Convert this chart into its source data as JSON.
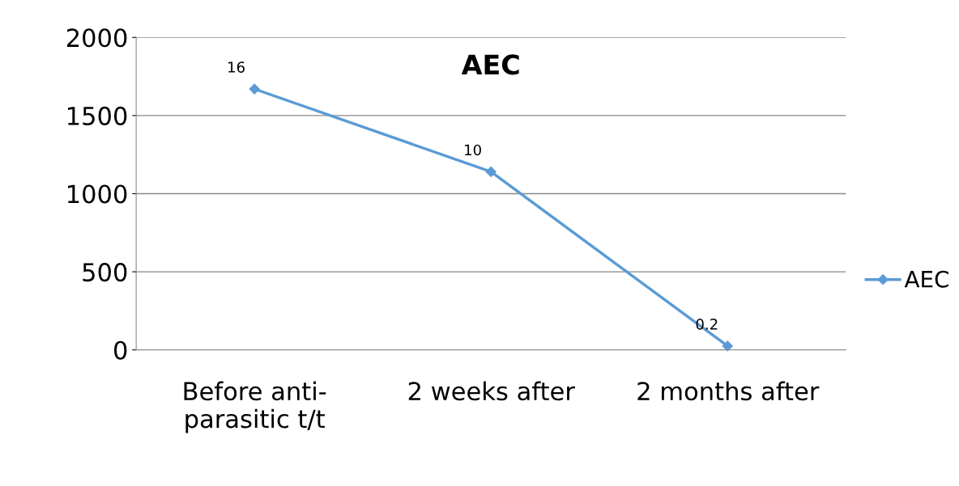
{
  "chart_data": {
    "type": "line",
    "title": "AEC",
    "categories": [
      "Before anti-\nparasitic t/t",
      "2 weeks after",
      "2 months after"
    ],
    "series": [
      {
        "name": "AEC",
        "color": "#5b9bd5",
        "values": [
          1670,
          1140,
          25
        ]
      }
    ],
    "annotations": [
      {
        "text": "16",
        "x": "Before anti-\nparasitic t/t",
        "y": 1670
      },
      {
        "text": "10",
        "x": "2 weeks after",
        "y": 1140
      },
      {
        "text": "0.2",
        "x": "2 months after",
        "y": 25
      }
    ],
    "ylim": [
      0,
      2000
    ],
    "yticks": [
      0,
      500,
      1000,
      1500,
      2000
    ],
    "grid": "y",
    "legend": "right",
    "marker": "diamond",
    "line_style": "solid"
  }
}
